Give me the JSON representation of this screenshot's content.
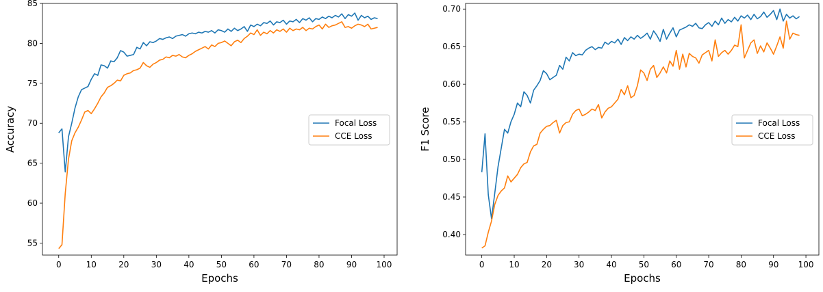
{
  "chart_data": [
    {
      "type": "line",
      "xlabel": "Epochs",
      "ylabel": "Accuracy",
      "xlim": [
        -5,
        104
      ],
      "ylim": [
        53.5,
        85
      ],
      "xticks": [
        0,
        10,
        20,
        30,
        40,
        50,
        60,
        70,
        80,
        90,
        100
      ],
      "yticks": [
        55,
        60,
        65,
        70,
        75,
        80,
        85
      ],
      "grid": false,
      "legend": "center-right",
      "x": [
        0,
        1,
        2,
        3,
        4,
        5,
        6,
        7,
        8,
        9,
        10,
        11,
        12,
        13,
        14,
        15,
        16,
        17,
        18,
        19,
        20,
        21,
        22,
        23,
        24,
        25,
        26,
        27,
        28,
        29,
        30,
        31,
        32,
        33,
        34,
        35,
        36,
        37,
        38,
        39,
        40,
        41,
        42,
        43,
        44,
        45,
        46,
        47,
        48,
        49,
        50,
        51,
        52,
        53,
        54,
        55,
        56,
        57,
        58,
        59,
        60,
        61,
        62,
        63,
        64,
        65,
        66,
        67,
        68,
        69,
        70,
        71,
        72,
        73,
        74,
        75,
        76,
        77,
        78,
        79,
        80,
        81,
        82,
        83,
        84,
        85,
        86,
        87,
        88,
        89,
        90,
        91,
        92,
        93,
        94,
        95,
        96,
        97,
        98
      ],
      "series": [
        {
          "name": "Focal Loss",
          "color": "#1f77b4",
          "values": [
            68.8,
            69.3,
            63.9,
            68.3,
            70.0,
            71.9,
            73.3,
            74.2,
            74.4,
            74.6,
            75.5,
            76.2,
            76.0,
            77.3,
            77.2,
            76.9,
            77.8,
            77.7,
            78.2,
            79.1,
            78.9,
            78.4,
            78.5,
            78.6,
            79.5,
            79.3,
            80.1,
            79.7,
            80.2,
            80.1,
            80.3,
            80.6,
            80.5,
            80.7,
            80.8,
            80.6,
            80.9,
            81.0,
            81.1,
            80.9,
            81.2,
            81.3,
            81.2,
            81.4,
            81.3,
            81.5,
            81.4,
            81.6,
            81.3,
            81.7,
            81.6,
            81.4,
            81.8,
            81.5,
            81.9,
            81.6,
            81.8,
            82.1,
            81.5,
            82.3,
            82.1,
            82.4,
            82.2,
            82.6,
            82.5,
            82.8,
            82.3,
            82.7,
            82.6,
            82.9,
            82.4,
            82.8,
            82.7,
            83.0,
            82.6,
            83.1,
            82.9,
            83.2,
            82.7,
            83.1,
            83.0,
            83.3,
            83.1,
            83.4,
            83.2,
            83.5,
            83.3,
            83.7,
            83.1,
            83.6,
            83.4,
            83.8,
            82.9,
            83.5,
            83.2,
            83.4,
            83.0,
            83.2,
            83.1
          ]
        },
        {
          "name": "CCE Loss",
          "color": "#ff7f0e",
          "values": [
            54.3,
            54.8,
            61.2,
            65.5,
            67.8,
            68.8,
            69.5,
            70.4,
            71.4,
            71.6,
            71.2,
            71.8,
            72.5,
            73.3,
            73.8,
            74.5,
            74.7,
            75.0,
            75.4,
            75.3,
            76.0,
            76.2,
            76.3,
            76.6,
            76.7,
            76.9,
            77.6,
            77.2,
            77.0,
            77.4,
            77.6,
            77.9,
            78.0,
            78.3,
            78.2,
            78.5,
            78.4,
            78.6,
            78.3,
            78.2,
            78.5,
            78.7,
            79.0,
            79.2,
            79.4,
            79.6,
            79.3,
            79.8,
            79.6,
            80.0,
            80.1,
            80.3,
            80.0,
            79.7,
            80.2,
            80.4,
            80.1,
            80.6,
            80.9,
            81.3,
            81.1,
            81.7,
            81.0,
            81.4,
            81.2,
            81.6,
            81.3,
            81.7,
            81.5,
            81.8,
            81.4,
            81.9,
            81.6,
            81.8,
            81.7,
            82.0,
            81.6,
            81.9,
            81.8,
            82.1,
            82.3,
            81.8,
            82.4,
            82.0,
            82.2,
            82.3,
            82.5,
            82.7,
            82.0,
            82.1,
            81.9,
            82.2,
            82.4,
            82.3,
            82.1,
            82.4,
            81.8,
            81.9,
            82.0
          ]
        }
      ]
    },
    {
      "type": "line",
      "xlabel": "Epochs",
      "ylabel": "F1 Score",
      "xlim": [
        -5,
        104
      ],
      "ylim": [
        0.3727,
        0.7075
      ],
      "xticks": [
        0,
        10,
        20,
        30,
        40,
        50,
        60,
        70,
        80,
        90,
        100
      ],
      "yticks": [
        0.4,
        0.45,
        0.5,
        0.55,
        0.6,
        0.65,
        0.7
      ],
      "grid": false,
      "legend": "center-right",
      "x": [
        0,
        1,
        2,
        3,
        4,
        5,
        6,
        7,
        8,
        9,
        10,
        11,
        12,
        13,
        14,
        15,
        16,
        17,
        18,
        19,
        20,
        21,
        22,
        23,
        24,
        25,
        26,
        27,
        28,
        29,
        30,
        31,
        32,
        33,
        34,
        35,
        36,
        37,
        38,
        39,
        40,
        41,
        42,
        43,
        44,
        45,
        46,
        47,
        48,
        49,
        50,
        51,
        52,
        53,
        54,
        55,
        56,
        57,
        58,
        59,
        60,
        61,
        62,
        63,
        64,
        65,
        66,
        67,
        68,
        69,
        70,
        71,
        72,
        73,
        74,
        75,
        76,
        77,
        78,
        79,
        80,
        81,
        82,
        83,
        84,
        85,
        86,
        87,
        88,
        89,
        90,
        91,
        92,
        93,
        94,
        95,
        96,
        97,
        98
      ],
      "series": [
        {
          "name": "Focal Loss",
          "color": "#1f77b4",
          "values": [
            0.483,
            0.534,
            0.453,
            0.421,
            0.455,
            0.49,
            0.515,
            0.54,
            0.535,
            0.55,
            0.56,
            0.575,
            0.57,
            0.59,
            0.585,
            0.575,
            0.592,
            0.598,
            0.605,
            0.618,
            0.614,
            0.606,
            0.609,
            0.612,
            0.625,
            0.62,
            0.636,
            0.631,
            0.642,
            0.638,
            0.64,
            0.639,
            0.645,
            0.648,
            0.65,
            0.646,
            0.649,
            0.648,
            0.656,
            0.653,
            0.657,
            0.655,
            0.66,
            0.653,
            0.662,
            0.658,
            0.663,
            0.66,
            0.665,
            0.661,
            0.664,
            0.668,
            0.66,
            0.671,
            0.665,
            0.657,
            0.673,
            0.66,
            0.668,
            0.675,
            0.663,
            0.672,
            0.674,
            0.676,
            0.679,
            0.677,
            0.681,
            0.675,
            0.674,
            0.679,
            0.682,
            0.677,
            0.684,
            0.679,
            0.688,
            0.681,
            0.686,
            0.683,
            0.689,
            0.684,
            0.691,
            0.688,
            0.692,
            0.686,
            0.693,
            0.687,
            0.69,
            0.696,
            0.689,
            0.693,
            0.698,
            0.686,
            0.7,
            0.684,
            0.693,
            0.688,
            0.691,
            0.687,
            0.69
          ]
        },
        {
          "name": "CCE Loss",
          "color": "#ff7f0e",
          "values": [
            0.382,
            0.385,
            0.403,
            0.418,
            0.44,
            0.452,
            0.458,
            0.462,
            0.478,
            0.47,
            0.475,
            0.48,
            0.489,
            0.494,
            0.496,
            0.51,
            0.518,
            0.52,
            0.535,
            0.54,
            0.544,
            0.545,
            0.549,
            0.552,
            0.535,
            0.545,
            0.549,
            0.55,
            0.56,
            0.565,
            0.567,
            0.558,
            0.56,
            0.563,
            0.567,
            0.565,
            0.573,
            0.555,
            0.563,
            0.568,
            0.57,
            0.575,
            0.58,
            0.593,
            0.586,
            0.598,
            0.582,
            0.585,
            0.598,
            0.619,
            0.615,
            0.605,
            0.62,
            0.625,
            0.609,
            0.615,
            0.623,
            0.615,
            0.631,
            0.624,
            0.645,
            0.62,
            0.64,
            0.623,
            0.641,
            0.637,
            0.635,
            0.628,
            0.639,
            0.642,
            0.645,
            0.631,
            0.659,
            0.637,
            0.642,
            0.645,
            0.64,
            0.645,
            0.652,
            0.65,
            0.679,
            0.635,
            0.645,
            0.655,
            0.659,
            0.641,
            0.651,
            0.643,
            0.655,
            0.648,
            0.64,
            0.651,
            0.663,
            0.648,
            0.684,
            0.66,
            0.668,
            0.666,
            0.665
          ]
        }
      ]
    }
  ]
}
